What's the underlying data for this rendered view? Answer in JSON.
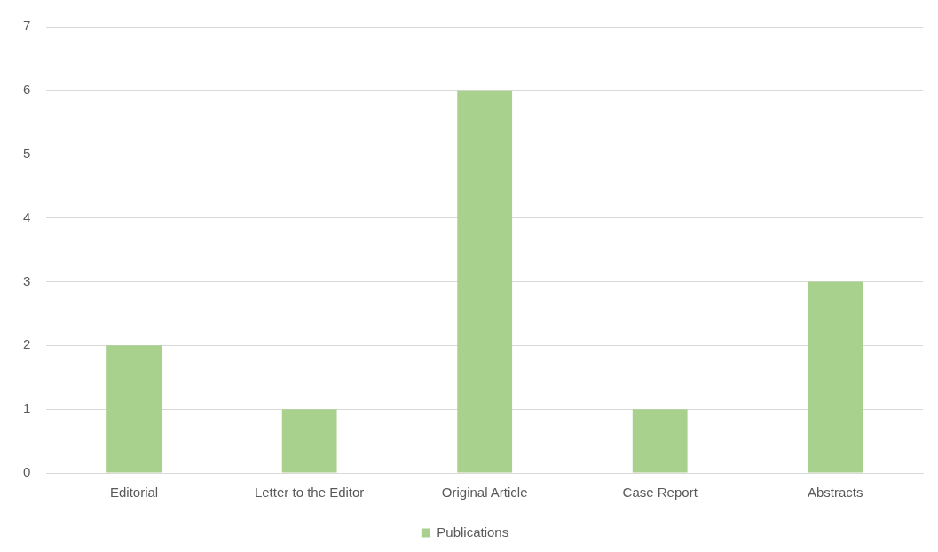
{
  "chart_data": {
    "type": "bar",
    "categories": [
      "Editorial",
      "Letter to the Editor",
      "Original Article",
      "Case Report",
      "Abstracts"
    ],
    "series": [
      {
        "name": "Publications",
        "color": "#a9d18e",
        "values": [
          2,
          1,
          6,
          1,
          3
        ]
      }
    ],
    "ylim": [
      0,
      7
    ],
    "yticks": [
      0,
      1,
      2,
      3,
      4,
      5,
      6,
      7
    ],
    "grid": "y",
    "legend": "bottom"
  }
}
